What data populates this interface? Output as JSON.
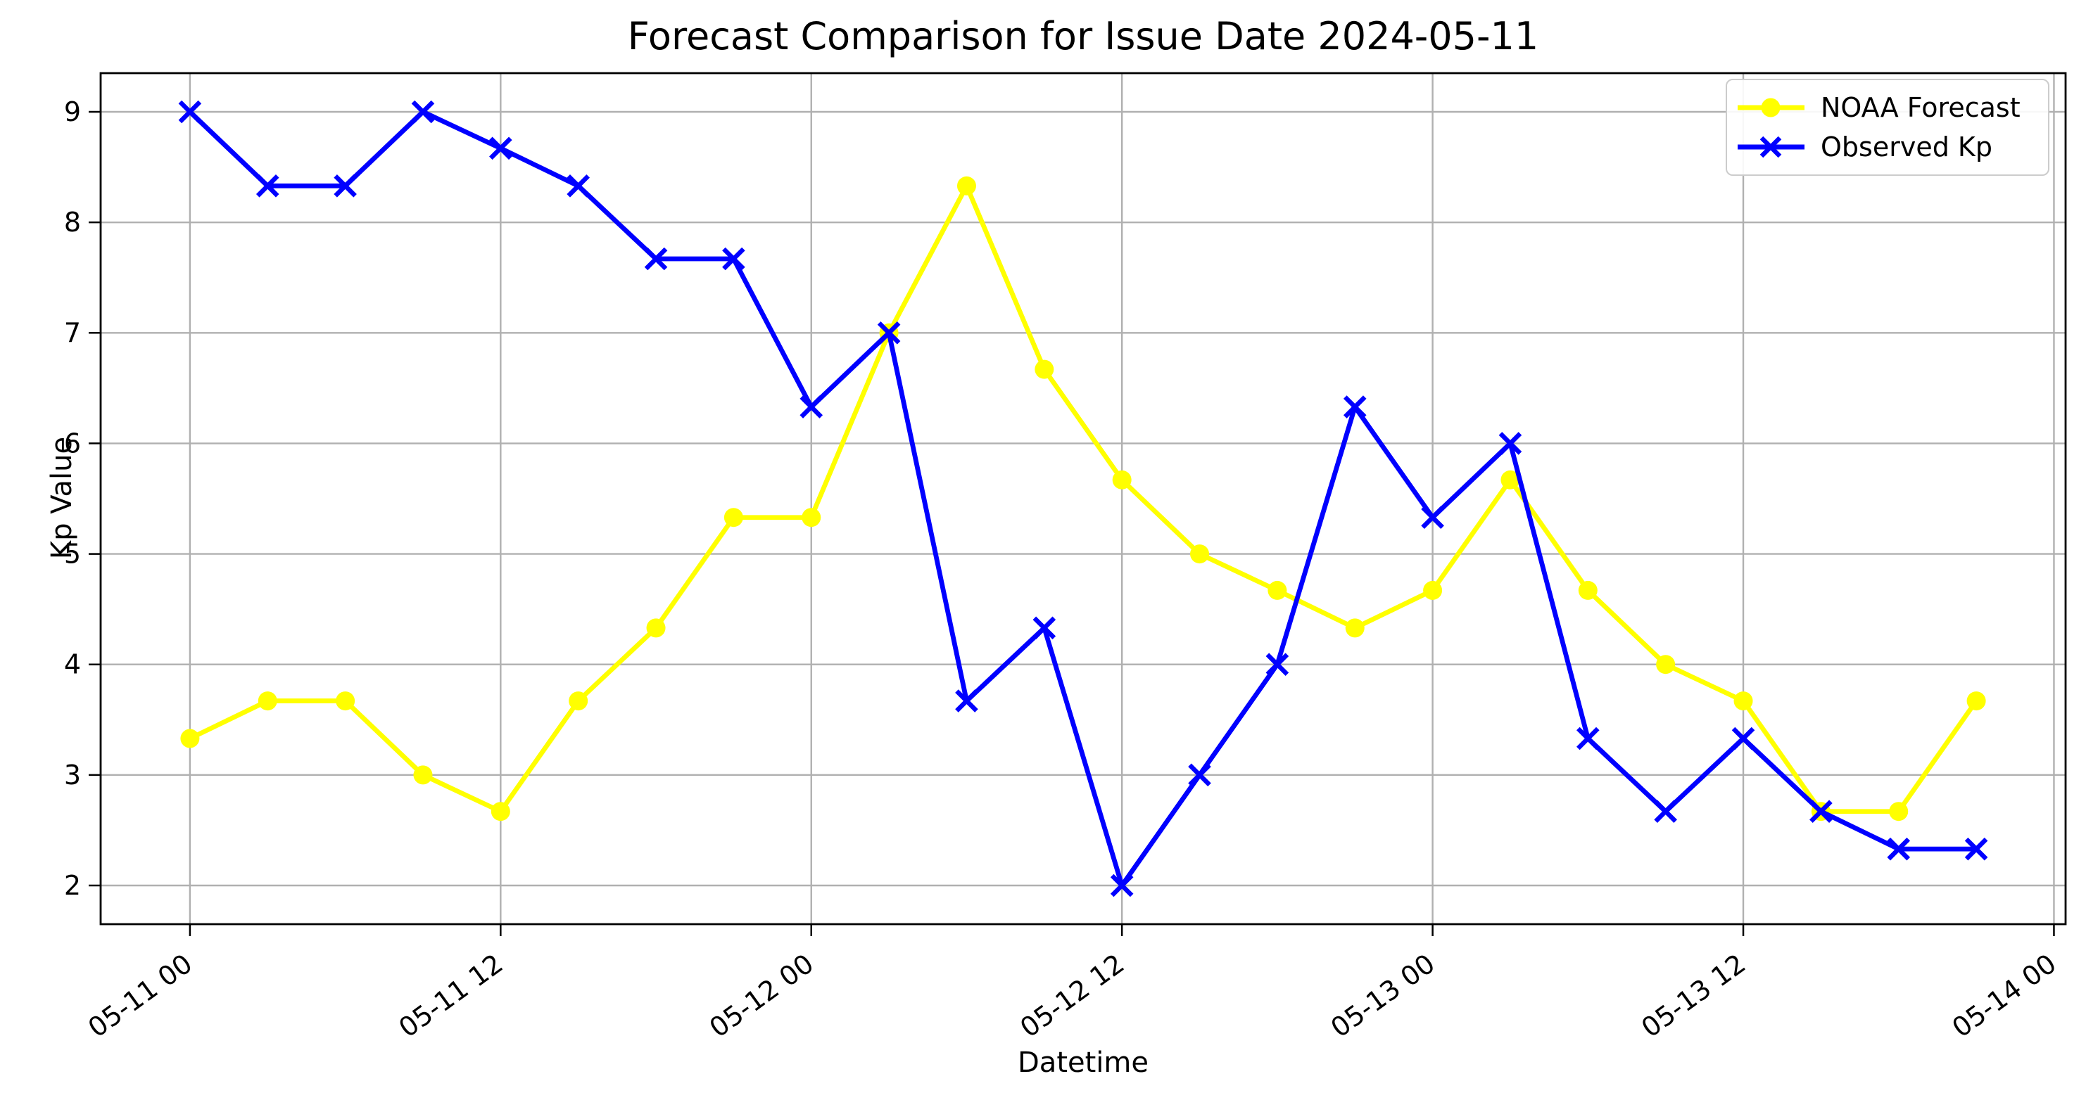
{
  "figure": {
    "title": "Forecast Comparison for Issue Date 2024-05-11",
    "xlabel": "Datetime",
    "ylabel": "Kp Value"
  },
  "legend": {
    "items": [
      {
        "label": "NOAA Forecast",
        "color": "#ffff00",
        "marker": "circle"
      },
      {
        "label": "Observed Kp",
        "color": "#0000ff",
        "marker": "x"
      }
    ]
  },
  "chart_data": {
    "type": "line",
    "title": "Forecast Comparison for Issue Date 2024-05-11",
    "xlabel": "Datetime",
    "ylabel": "Kp Value",
    "grid": true,
    "legend_position": "upper right",
    "xlim_hours": [
      -3.45,
      72.45
    ],
    "ylim": [
      1.65,
      9.35
    ],
    "y_ticks": [
      2,
      3,
      4,
      5,
      6,
      7,
      8,
      9
    ],
    "x_tick_hours": [
      0,
      12,
      24,
      36,
      48,
      60,
      72
    ],
    "x_tick_labels": [
      "05-11 00",
      "05-11 12",
      "05-12 00",
      "05-12 12",
      "05-13 00",
      "05-13 12",
      "05-14 00"
    ],
    "x_hours": [
      0,
      3,
      6,
      9,
      12,
      15,
      18,
      21,
      24,
      27,
      30,
      33,
      36,
      39,
      42,
      45,
      48,
      51,
      54,
      57,
      60,
      63,
      66,
      69
    ],
    "x_datetimes": [
      "05-11 00",
      "05-11 03",
      "05-11 06",
      "05-11 09",
      "05-11 12",
      "05-11 15",
      "05-11 18",
      "05-11 21",
      "05-12 00",
      "05-12 03",
      "05-12 06",
      "05-12 09",
      "05-12 12",
      "05-12 15",
      "05-12 18",
      "05-12 21",
      "05-13 00",
      "05-13 03",
      "05-13 06",
      "05-13 09",
      "05-13 12",
      "05-13 15",
      "05-13 18",
      "05-13 21"
    ],
    "series": [
      {
        "name": "NOAA Forecast",
        "color": "#ffff00",
        "marker": "circle",
        "values": [
          3.33,
          3.67,
          3.67,
          3.0,
          2.67,
          3.67,
          4.33,
          5.33,
          5.33,
          7.0,
          8.33,
          6.67,
          5.67,
          5.0,
          4.67,
          4.33,
          4.67,
          5.67,
          4.67,
          4.0,
          3.67,
          2.67,
          2.67,
          3.67
        ]
      },
      {
        "name": "Observed Kp",
        "color": "#0000ff",
        "marker": "x",
        "values": [
          9.0,
          8.33,
          8.33,
          9.0,
          8.67,
          8.33,
          7.67,
          7.67,
          6.33,
          7.0,
          3.67,
          4.33,
          2.0,
          3.0,
          4.0,
          6.33,
          5.33,
          6.0,
          3.33,
          2.67,
          3.33,
          2.67,
          2.33,
          2.33
        ]
      }
    ],
    "style": {
      "grid_color": "#b0b0b0",
      "spine_color": "#000000",
      "background": "#ffffff"
    }
  }
}
